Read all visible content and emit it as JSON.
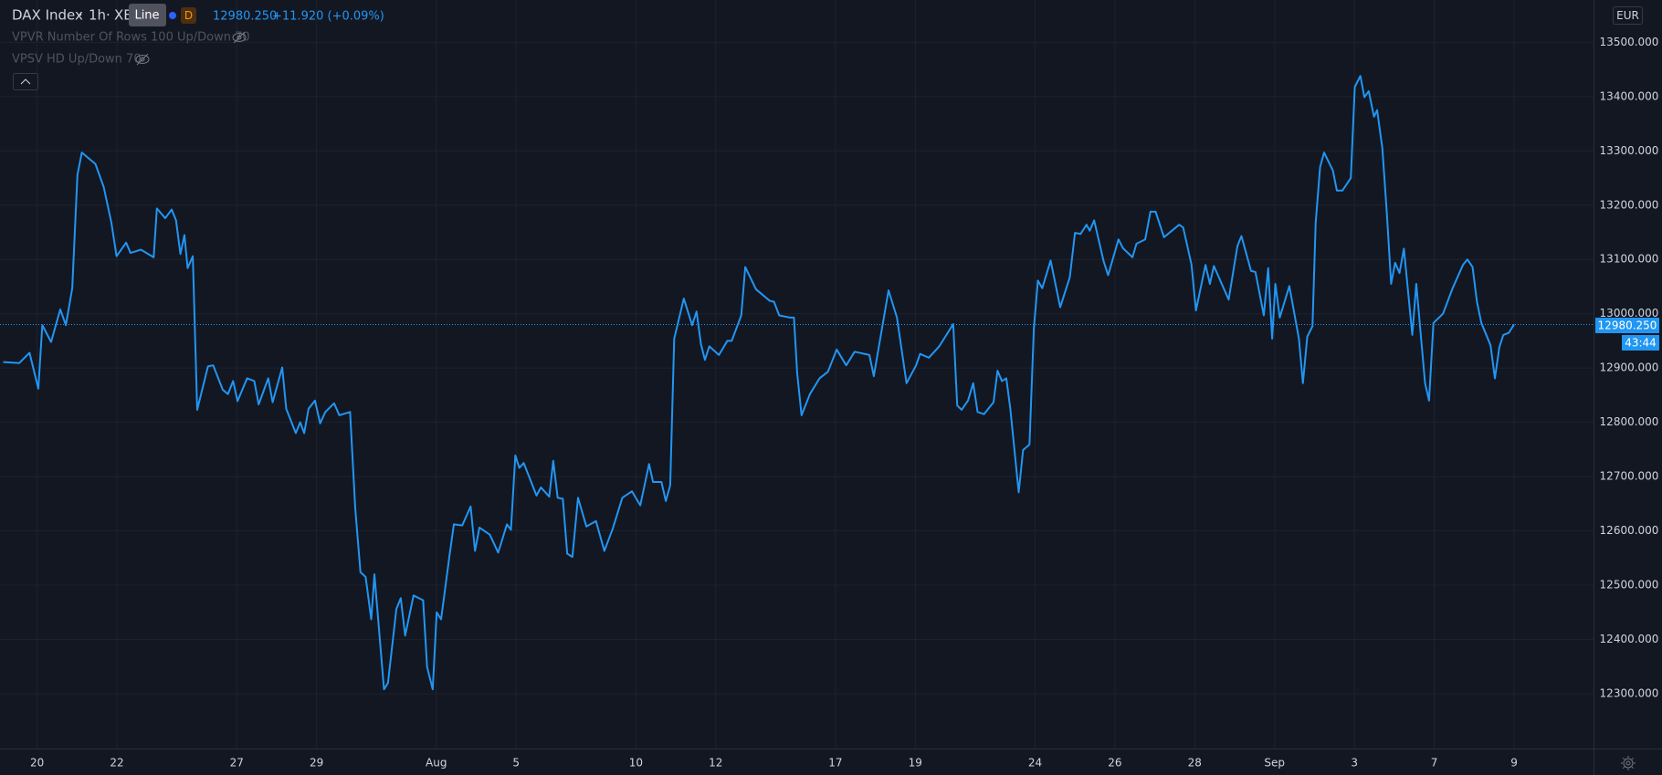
{
  "header": {
    "symbol": "DAX Index",
    "interval": "1h",
    "exchange": "XE",
    "tooltip": "Line",
    "badge": "D",
    "last": "12980.250",
    "change": "+11.920 (+0.09%)"
  },
  "indicators": [
    "VPVR Number Of Rows 100 Up/Down 70",
    "VPSV HD Up/Down 70"
  ],
  "currency": "EUR",
  "countdown": "43:44",
  "chart_data": {
    "type": "line",
    "grid": true,
    "xlim": [
      -0.93,
      38.99
    ],
    "ylim": [
      12199,
      13578
    ],
    "xticks": [
      {
        "value": 0,
        "label": "20"
      },
      {
        "value": 2,
        "label": "22"
      },
      {
        "value": 5,
        "label": "27"
      },
      {
        "value": 7,
        "label": "29"
      },
      {
        "value": 10,
        "label": "Aug"
      },
      {
        "value": 12,
        "label": "5"
      },
      {
        "value": 15,
        "label": "10"
      },
      {
        "value": 17,
        "label": "12"
      },
      {
        "value": 20,
        "label": "17"
      },
      {
        "value": 22,
        "label": "19"
      },
      {
        "value": 25,
        "label": "24"
      },
      {
        "value": 27,
        "label": "26"
      },
      {
        "value": 29,
        "label": "28"
      },
      {
        "value": 31,
        "label": "Sep"
      },
      {
        "value": 33,
        "label": "3"
      },
      {
        "value": 35,
        "label": "7"
      },
      {
        "value": 37,
        "label": "9"
      }
    ],
    "yticks": [
      {
        "value": 12300,
        "label": "12300.000"
      },
      {
        "value": 12400,
        "label": "12400.000"
      },
      {
        "value": 12500,
        "label": "12500.000"
      },
      {
        "value": 12600,
        "label": "12600.000"
      },
      {
        "value": 12700,
        "label": "12700.000"
      },
      {
        "value": 12800,
        "label": "12800.000"
      },
      {
        "value": 12900,
        "label": "12900.000"
      },
      {
        "value": 13000,
        "label": "13000.000"
      },
      {
        "value": 13100,
        "label": "13100.000"
      },
      {
        "value": 13200,
        "label": "13200.000"
      },
      {
        "value": 13300,
        "label": "13300.000"
      },
      {
        "value": 13400,
        "label": "13400.000"
      },
      {
        "value": 13500,
        "label": "13500.000"
      }
    ],
    "x": [
      -0.85,
      -0.45,
      -0.19,
      0.03,
      0.13,
      0.35,
      0.58,
      0.72,
      0.88,
      1.01,
      1.12,
      1.46,
      1.67,
      1.86,
      1.99,
      2.23,
      2.34,
      2.6,
      2.92,
      3.0,
      3.21,
      3.37,
      3.48,
      3.59,
      3.69,
      3.77,
      3.9,
      4.01,
      4.28,
      4.41,
      4.65,
      4.78,
      4.91,
      5.02,
      5.26,
      5.44,
      5.55,
      5.79,
      5.9,
      6.14,
      6.24,
      6.48,
      6.59,
      6.69,
      6.8,
      6.96,
      7.09,
      7.22,
      7.44,
      7.57,
      7.84,
      7.97,
      8.1,
      8.23,
      8.37,
      8.45,
      8.69,
      8.79,
      9.0,
      9.11,
      9.22,
      9.43,
      9.67,
      9.77,
      9.91,
      10.01,
      10.12,
      10.33,
      10.44,
      10.65,
      10.86,
      10.97,
      11.08,
      11.34,
      11.55,
      11.77,
      11.87,
      11.98,
      12.08,
      12.19,
      12.51,
      12.62,
      12.83,
      12.93,
      13.04,
      13.17,
      13.28,
      13.41,
      13.55,
      13.76,
      14.0,
      14.21,
      14.42,
      14.66,
      14.9,
      15.11,
      15.33,
      15.43,
      15.64,
      15.75,
      15.86,
      15.96,
      16.2,
      16.41,
      16.52,
      16.63,
      16.73,
      16.84,
      17.08,
      17.29,
      17.4,
      17.64,
      17.74,
      18.01,
      18.35,
      18.46,
      18.59,
      18.86,
      18.96,
      19.04,
      19.15,
      19.36,
      19.6,
      19.81,
      20.03,
      20.27,
      20.48,
      20.85,
      20.96,
      21.06,
      21.33,
      21.54,
      21.78,
      22.02,
      22.12,
      22.34,
      22.6,
      22.95,
      23.05,
      23.16,
      23.32,
      23.45,
      23.56,
      23.72,
      23.96,
      24.06,
      24.17,
      24.28,
      24.38,
      24.59,
      24.7,
      24.86,
      24.97,
      25.07,
      25.18,
      25.39,
      25.63,
      25.87,
      26.0,
      26.14,
      26.29,
      26.37,
      26.48,
      26.72,
      26.83,
      27.09,
      27.2,
      27.44,
      27.54,
      27.76,
      27.89,
      28.02,
      28.23,
      28.61,
      28.71,
      28.92,
      29.03,
      29.27,
      29.38,
      29.48,
      29.85,
      30.07,
      30.17,
      30.41,
      30.52,
      30.73,
      30.84,
      30.94,
      31.02,
      31.13,
      31.37,
      31.61,
      31.71,
      31.82,
      31.95,
      32.03,
      32.14,
      32.24,
      32.46,
      32.56,
      32.7,
      32.91,
      33.01,
      33.15,
      33.25,
      33.36,
      33.49,
      33.57,
      33.7,
      33.81,
      33.92,
      34.02,
      34.13,
      34.24,
      34.45,
      34.55,
      34.77,
      34.87,
      34.98,
      35.22,
      35.46,
      35.72,
      35.83,
      35.96,
      36.07,
      36.18,
      36.41,
      36.52,
      36.63,
      36.73,
      36.87,
      37.0
    ],
    "series": [
      {
        "color": "#2196f3",
        "values": [
          12911,
          12909,
          12928,
          12862,
          12979,
          12948,
          13008,
          12979,
          13047,
          13256,
          13297,
          13276,
          13233,
          13168,
          13106,
          13131,
          13112,
          13118,
          13104,
          13194,
          13176,
          13192,
          13172,
          13110,
          13145,
          13084,
          13106,
          12823,
          12903,
          12905,
          12860,
          12852,
          12876,
          12839,
          12881,
          12876,
          12833,
          12881,
          12837,
          12901,
          12825,
          12780,
          12800,
          12780,
          12825,
          12840,
          12798,
          12819,
          12835,
          12813,
          12819,
          12641,
          12524,
          12515,
          12437,
          12520,
          12308,
          12320,
          12456,
          12476,
          12407,
          12481,
          12472,
          12349,
          12308,
          12450,
          12437,
          12554,
          12612,
          12610,
          12645,
          12563,
          12606,
          12593,
          12560,
          12612,
          12602,
          12739,
          12716,
          12725,
          12665,
          12680,
          12663,
          12729,
          12661,
          12659,
          12558,
          12552,
          12661,
          12608,
          12618,
          12563,
          12604,
          12661,
          12673,
          12647,
          12723,
          12690,
          12690,
          12655,
          12684,
          12954,
          13028,
          12979,
          13004,
          12944,
          12915,
          12940,
          12924,
          12950,
          12950,
          12997,
          13086,
          13045,
          13024,
          13022,
          12997,
          12993,
          12993,
          12891,
          12813,
          12852,
          12881,
          12893,
          12934,
          12905,
          12930,
          12924,
          12885,
          12928,
          13043,
          12993,
          12872,
          12905,
          12926,
          12919,
          12940,
          12981,
          12831,
          12823,
          12840,
          12872,
          12819,
          12815,
          12837,
          12895,
          12876,
          12881,
          12825,
          12671,
          12749,
          12759,
          12973,
          13061,
          13047,
          13098,
          13012,
          13067,
          13149,
          13147,
          13164,
          13153,
          13172,
          13096,
          13071,
          13137,
          13121,
          13104,
          13129,
          13137,
          13188,
          13188,
          13141,
          13164,
          13159,
          13090,
          13006,
          13090,
          13055,
          13088,
          13026,
          13125,
          13143,
          13079,
          13077,
          12997,
          13084,
          12954,
          13055,
          12993,
          13051,
          12954,
          12872,
          12958,
          12977,
          13168,
          13270,
          13297,
          13264,
          13227,
          13227,
          13250,
          13418,
          13438,
          13399,
          13410,
          13363,
          13375,
          13305,
          13188,
          13055,
          13094,
          13075,
          13120,
          12961,
          13055,
          12872,
          12840,
          12983,
          13000,
          13047,
          13090,
          13100,
          13086,
          13022,
          12983,
          12942,
          12881,
          12938,
          12961,
          12965,
          12980.25
        ]
      }
    ]
  }
}
